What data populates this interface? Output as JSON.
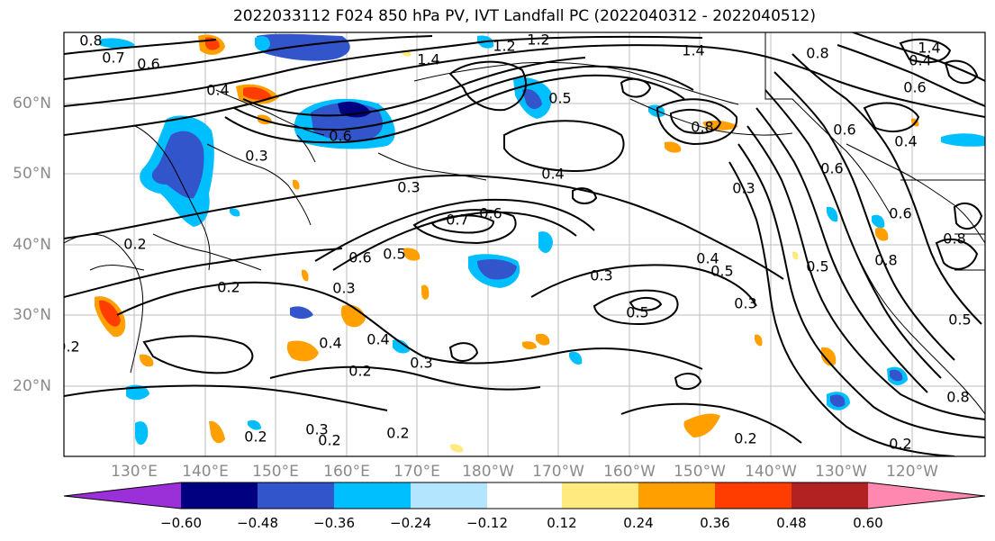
{
  "title": "2022033112 F024 850 hPa PV, IVT Landfall PC (2022040312 - 2022040512)",
  "lat_labels": [
    "60°N",
    "50°N",
    "40°N",
    "30°N",
    "20°N"
  ],
  "lon_labels": [
    "130°E",
    "140°E",
    "150°E",
    "160°E",
    "170°E",
    "180°W",
    "170°W",
    "160°W",
    "150°W",
    "140°W",
    "130°W",
    "120°W"
  ],
  "colorbar": {
    "ticks": [
      "−0.60",
      "−0.48",
      "−0.36",
      "−0.24",
      "−0.12",
      "0.12",
      "0.24",
      "0.36",
      "0.48",
      "0.60"
    ],
    "colors": [
      "#9b30d9",
      "#000080",
      "#3355cc",
      "#00bfff",
      "#b3e5ff",
      "#ffffff",
      "#ffea80",
      "#ff9f00",
      "#ff3d00",
      "#b22222",
      "#ff88b0"
    ]
  },
  "contour_labels": [
    "0.8",
    "0.7",
    "0.6",
    "0.4",
    "0.3",
    "0.6",
    "0.3",
    "1.4",
    "1.2",
    "1.2",
    "0.5",
    "0.4",
    "1.4",
    "0.8",
    "0.4",
    "0.3",
    "0.7",
    "0.6",
    "0.4",
    "0.5",
    "0.6",
    "0.5",
    "0.3",
    "0.4",
    "0.5",
    "0.3",
    "0.3",
    "0.5",
    "0.2",
    "0.2",
    "0.2",
    "0.4",
    "0.3",
    "0.2",
    "0.3",
    "0.2",
    "0.2",
    "0.2",
    "0.2",
    "0.8",
    "0.2",
    "0.8",
    "0.6",
    "0.6",
    "0.4",
    "1.4",
    "0.8",
    "0.6",
    "0.6",
    "0.8",
    "0.5"
  ]
}
